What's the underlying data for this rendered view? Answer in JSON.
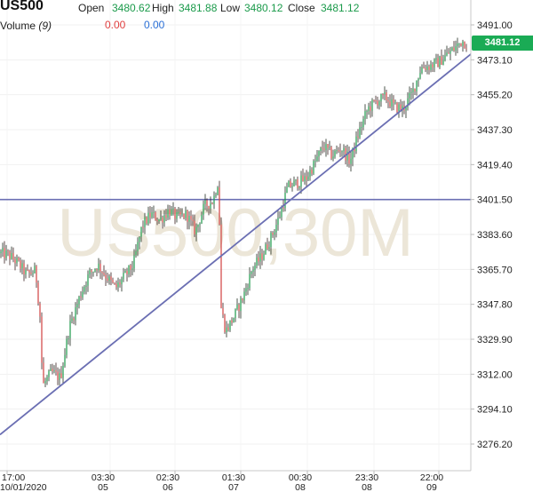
{
  "header": {
    "symbol": "US500",
    "open_label": "Open",
    "open_value": "3480.62",
    "high_label": "High",
    "high_value": "3481.88",
    "low_label": "Low",
    "low_value": "3480.12",
    "close_label": "Close",
    "close_value": "3481.12",
    "volume_label": "Volume",
    "volume_period": "(9)",
    "volume_value_a": "0.00",
    "volume_value_b": "0.00"
  },
  "watermark": "US500,30M",
  "current_price": "3481.12",
  "colors": {
    "up": "#1a9a4a",
    "down": "#d04040",
    "trendline": "#6b6fb3",
    "price_tag": "#1aab55",
    "watermark": "#ece6d8"
  },
  "chart_data": {
    "type": "candlestick",
    "y_ticks": [
      3491.0,
      3473.1,
      3455.2,
      3437.3,
      3419.4,
      3401.5,
      3383.6,
      3365.7,
      3347.8,
      3329.9,
      3312.0,
      3294.1,
      3276.2
    ],
    "y_tick_labels": [
      "3491.00",
      "3473.10",
      "3455.20",
      "3437.30",
      "3419.40",
      "3401.50",
      "3383.60",
      "3365.70",
      "3347.80",
      "3329.90",
      "3312.00",
      "3294.10",
      "3276.20"
    ],
    "ylim": [
      3264,
      3498
    ],
    "x_tick_labels": [
      {
        "time": "17:00",
        "date": "10/01/2020"
      },
      {
        "time": "03:30",
        "date": "05"
      },
      {
        "time": "02:30",
        "date": "06"
      },
      {
        "time": "01:30",
        "date": "07"
      },
      {
        "time": "00:30",
        "date": "08"
      },
      {
        "time": "23:30",
        "date": "08"
      },
      {
        "time": "22:00",
        "date": "09"
      }
    ],
    "horizontal_line": 3401.5,
    "trendline": {
      "start": 3281,
      "end": 3476
    },
    "path_keypoints": [
      [
        0,
        3374
      ],
      [
        10,
        3373
      ],
      [
        20,
        3369
      ],
      [
        30,
        3363
      ],
      [
        40,
        3365
      ],
      [
        45,
        3342
      ],
      [
        48,
        3306
      ],
      [
        58,
        3313
      ],
      [
        68,
        3310
      ],
      [
        78,
        3336
      ],
      [
        90,
        3352
      ],
      [
        100,
        3363
      ],
      [
        110,
        3368
      ],
      [
        120,
        3362
      ],
      [
        130,
        3356
      ],
      [
        140,
        3362
      ],
      [
        150,
        3368
      ],
      [
        160,
        3388
      ],
      [
        170,
        3394
      ],
      [
        180,
        3391
      ],
      [
        190,
        3396
      ],
      [
        200,
        3392
      ],
      [
        210,
        3394
      ],
      [
        220,
        3385
      ],
      [
        230,
        3398
      ],
      [
        240,
        3401
      ],
      [
        246,
        3412
      ],
      [
        249,
        3346
      ],
      [
        254,
        3334
      ],
      [
        264,
        3342
      ],
      [
        274,
        3352
      ],
      [
        284,
        3366
      ],
      [
        294,
        3372
      ],
      [
        304,
        3381
      ],
      [
        314,
        3392
      ],
      [
        324,
        3408
      ],
      [
        334,
        3410
      ],
      [
        344,
        3412
      ],
      [
        354,
        3420
      ],
      [
        364,
        3429
      ],
      [
        374,
        3424
      ],
      [
        384,
        3428
      ],
      [
        394,
        3421
      ],
      [
        404,
        3436
      ],
      [
        414,
        3448
      ],
      [
        424,
        3452
      ],
      [
        434,
        3454
      ],
      [
        444,
        3449
      ],
      [
        454,
        3448
      ],
      [
        464,
        3456
      ],
      [
        474,
        3469
      ],
      [
        484,
        3470
      ],
      [
        494,
        3472
      ],
      [
        504,
        3476
      ],
      [
        514,
        3480
      ],
      [
        520,
        3483
      ],
      [
        526,
        3481
      ]
    ]
  }
}
